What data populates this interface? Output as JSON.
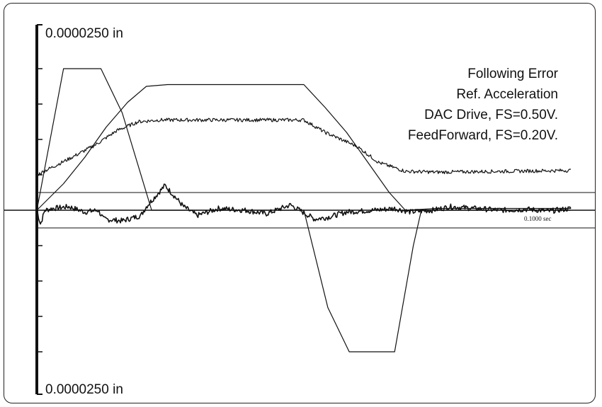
{
  "chart_data": {
    "type": "line",
    "y_top_label": "0.0000250 in",
    "y_bottom_label": "0.0000250 in",
    "time_marker_label": "0.1000 sec",
    "grid": false,
    "legend_position": "top-right",
    "x_range": [
      0,
      1
    ],
    "y_range": [
      -1,
      1
    ],
    "ref_band": [
      0.1,
      -0.1
    ],
    "y_ticks": [
      -0.8,
      -0.6,
      -0.4,
      -0.2,
      0.2,
      0.4,
      0.6,
      0.8
    ],
    "series": [
      {
        "name": "Following Error",
        "shape": "noisy",
        "points": [
          [
            0,
            0
          ],
          [
            0.007,
            -0.08
          ],
          [
            0.015,
            0
          ],
          [
            0.03,
            0.01
          ],
          [
            0.06,
            0.02
          ],
          [
            0.09,
            -0.01
          ],
          [
            0.115,
            0.0
          ],
          [
            0.125,
            -0.05
          ],
          [
            0.16,
            -0.06
          ],
          [
            0.195,
            -0.03
          ],
          [
            0.205,
            0.02
          ],
          [
            0.24,
            0.14
          ],
          [
            0.275,
            0.02
          ],
          [
            0.3,
            -0.03
          ],
          [
            0.34,
            0.01
          ],
          [
            0.39,
            0.0
          ],
          [
            0.43,
            -0.02
          ],
          [
            0.475,
            0.03
          ],
          [
            0.52,
            -0.05
          ],
          [
            0.545,
            -0.04
          ],
          [
            0.58,
            -0.01
          ],
          [
            0.63,
            0.0
          ],
          [
            0.67,
            0.01
          ],
          [
            0.7,
            -0.01
          ],
          [
            0.74,
            0.0
          ],
          [
            0.775,
            0.02
          ],
          [
            0.82,
            0.01
          ],
          [
            0.87,
            0.0
          ],
          [
            0.92,
            0.005
          ],
          [
            0.96,
            -0.005
          ],
          [
            1,
            0.01
          ]
        ]
      },
      {
        "name": "Ref. Acceleration",
        "shape": "clean",
        "points": [
          [
            0,
            0
          ],
          [
            0.05,
            0.8
          ],
          [
            0.12,
            0.8
          ],
          [
            0.16,
            0.55
          ],
          [
            0.215,
            0.0
          ],
          [
            0.27,
            0.0
          ],
          [
            0.5,
            0.0
          ],
          [
            0.545,
            -0.55
          ],
          [
            0.585,
            -0.8
          ],
          [
            0.67,
            -0.8
          ],
          [
            0.705,
            -0.2
          ],
          [
            0.72,
            0.0
          ],
          [
            1,
            0.0
          ]
        ]
      },
      {
        "name": "DAC Drive, FS=0.50V.",
        "shape": "clean",
        "points": [
          [
            0,
            0
          ],
          [
            0.05,
            0.15
          ],
          [
            0.09,
            0.3
          ],
          [
            0.13,
            0.47
          ],
          [
            0.17,
            0.61
          ],
          [
            0.205,
            0.7
          ],
          [
            0.245,
            0.71
          ],
          [
            0.5,
            0.71
          ],
          [
            0.54,
            0.58
          ],
          [
            0.58,
            0.44
          ],
          [
            0.62,
            0.27
          ],
          [
            0.66,
            0.1
          ],
          [
            0.69,
            0.0
          ],
          [
            0.75,
            0.01
          ],
          [
            1,
            0.01
          ]
        ]
      },
      {
        "name": "FeedForward, FS=0.20V.",
        "shape": "noisy",
        "points": [
          [
            0,
            0.2
          ],
          [
            0.06,
            0.29
          ],
          [
            0.11,
            0.37
          ],
          [
            0.15,
            0.45
          ],
          [
            0.19,
            0.5
          ],
          [
            0.23,
            0.51
          ],
          [
            0.5,
            0.51
          ],
          [
            0.54,
            0.44
          ],
          [
            0.6,
            0.36
          ],
          [
            0.64,
            0.27
          ],
          [
            0.69,
            0.22
          ],
          [
            0.75,
            0.215
          ],
          [
            1,
            0.225
          ]
        ]
      }
    ]
  }
}
